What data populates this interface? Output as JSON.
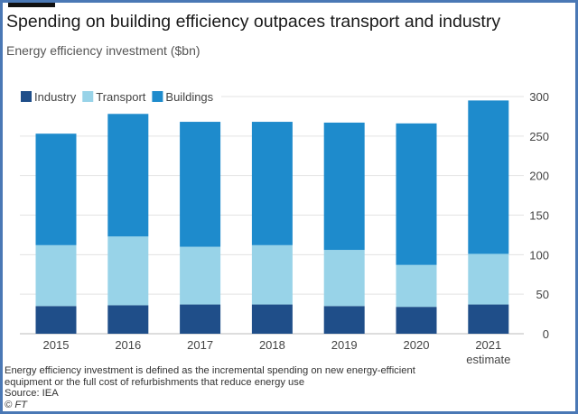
{
  "chart_data": {
    "type": "bar",
    "stacked": true,
    "title": "Spending on building efficiency outpaces transport and industry",
    "subtitle": "Energy efficiency investment ($bn)",
    "categories": [
      "2015",
      "2016",
      "2017",
      "2018",
      "2019",
      "2020",
      "2021"
    ],
    "category_sublabels": [
      "",
      "",
      "",
      "",
      "",
      "",
      "estimate"
    ],
    "series": [
      {
        "name": "Industry",
        "color": "#1f4e89",
        "values": [
          35,
          36,
          37,
          37,
          35,
          34,
          37
        ]
      },
      {
        "name": "Transport",
        "color": "#98d3e8",
        "values": [
          77,
          87,
          73,
          75,
          71,
          53,
          64
        ]
      },
      {
        "name": "Buildings",
        "color": "#1e8bcc",
        "values": [
          141,
          155,
          158,
          156,
          161,
          179,
          194
        ]
      }
    ],
    "ylim": [
      0,
      300
    ],
    "yticks": [
      0,
      50,
      100,
      150,
      200,
      250,
      300
    ],
    "yaxis_side": "right",
    "grid": true,
    "legend": "top-left",
    "notes": [
      "Energy efficiency investment is defined as the incremental spending on new energy-efficient",
      "equipment or the full cost of refurbishments that reduce energy use",
      "Source: IEA",
      "© FT"
    ]
  }
}
